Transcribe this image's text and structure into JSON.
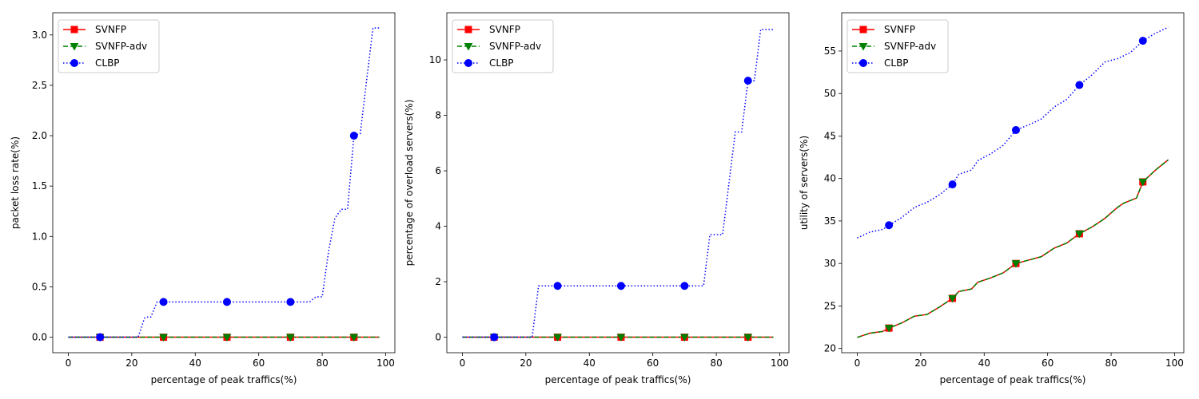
{
  "chart_data": [
    {
      "type": "line",
      "xlabel": "percentage of peak traffics(%)",
      "ylabel": "packet loss rate(%)",
      "xlim": [
        -4.9,
        102.9
      ],
      "ylim": [
        -0.154,
        3.22
      ],
      "xticks": [
        0,
        20,
        40,
        60,
        80,
        100
      ],
      "yticks": [
        0.0,
        0.5,
        1.0,
        1.5,
        2.0,
        2.5,
        3.0
      ],
      "ytick_labels": [
        "0.0",
        "0.5",
        "1.0",
        "1.5",
        "2.0",
        "2.5",
        "3.0"
      ],
      "legend_position": "upper left",
      "series": [
        {
          "name": "SVNFP",
          "color": "#ff0000",
          "dash": "solid",
          "marker": "square",
          "points": [
            [
              0,
              0
            ],
            [
              98,
              0
            ]
          ],
          "markers": [
            [
              10,
              0
            ],
            [
              30,
              0
            ],
            [
              50,
              0
            ],
            [
              70,
              0
            ],
            [
              90,
              0
            ]
          ]
        },
        {
          "name": "SVNFP-adv",
          "color": "#008000",
          "dash": "dashed",
          "marker": "triangle-down",
          "points": [
            [
              0,
              0
            ],
            [
              98,
              0
            ]
          ],
          "markers": [
            [
              10,
              0
            ],
            [
              30,
              0
            ],
            [
              50,
              0
            ],
            [
              70,
              0
            ],
            [
              90,
              0
            ]
          ]
        },
        {
          "name": "CLBP",
          "color": "#0000ff",
          "dash": "dotted",
          "marker": "circle",
          "points": [
            [
              0,
              0
            ],
            [
              22,
              0
            ],
            [
              24,
              0.19
            ],
            [
              25,
              0.2
            ],
            [
              26,
              0.2
            ],
            [
              28,
              0.35
            ],
            [
              76,
              0.35
            ],
            [
              78,
              0.4
            ],
            [
              80,
              0.4
            ],
            [
              82,
              0.85
            ],
            [
              84,
              1.18
            ],
            [
              86,
              1.27
            ],
            [
              88,
              1.27
            ],
            [
              90,
              2.0
            ],
            [
              92,
              2.02
            ],
            [
              94,
              2.55
            ],
            [
              96,
              3.07
            ],
            [
              98,
              3.07
            ]
          ],
          "markers": [
            [
              10,
              0
            ],
            [
              30,
              0.35
            ],
            [
              50,
              0.35
            ],
            [
              70,
              0.35
            ],
            [
              90,
              2.0
            ]
          ]
        }
      ]
    },
    {
      "type": "line",
      "xlabel": "percentage of peak traffics(%)",
      "ylabel": "percentage of overload servers(%)",
      "xlim": [
        -4.9,
        102.9
      ],
      "ylim": [
        -0.56,
        11.7
      ],
      "xticks": [
        0,
        20,
        40,
        60,
        80,
        100
      ],
      "yticks": [
        0,
        2,
        4,
        6,
        8,
        10
      ],
      "ytick_labels": [
        "0",
        "2",
        "4",
        "6",
        "8",
        "10"
      ],
      "legend_position": "upper left",
      "series": [
        {
          "name": "SVNFP",
          "color": "#ff0000",
          "dash": "solid",
          "marker": "square",
          "points": [
            [
              0,
              0
            ],
            [
              98,
              0
            ]
          ],
          "markers": [
            [
              10,
              0
            ],
            [
              30,
              0
            ],
            [
              50,
              0
            ],
            [
              70,
              0
            ],
            [
              90,
              0
            ]
          ]
        },
        {
          "name": "SVNFP-adv",
          "color": "#008000",
          "dash": "dashed",
          "marker": "triangle-down",
          "points": [
            [
              0,
              0
            ],
            [
              98,
              0
            ]
          ],
          "markers": [
            [
              10,
              0
            ],
            [
              30,
              0
            ],
            [
              50,
              0
            ],
            [
              70,
              0
            ],
            [
              90,
              0
            ]
          ]
        },
        {
          "name": "CLBP",
          "color": "#0000ff",
          "dash": "dotted",
          "marker": "circle",
          "points": [
            [
              0,
              0
            ],
            [
              22,
              0
            ],
            [
              24,
              1.85
            ],
            [
              76,
              1.85
            ],
            [
              78,
              3.7
            ],
            [
              82,
              3.7
            ],
            [
              86,
              7.4
            ],
            [
              88,
              7.4
            ],
            [
              90,
              9.25
            ],
            [
              92,
              9.25
            ],
            [
              94,
              11.1
            ],
            [
              98,
              11.1
            ]
          ],
          "markers": [
            [
              10,
              0
            ],
            [
              30,
              1.85
            ],
            [
              50,
              1.85
            ],
            [
              70,
              1.85
            ],
            [
              90,
              9.25
            ]
          ]
        }
      ]
    },
    {
      "type": "line",
      "xlabel": "percentage of peak traffics(%)",
      "ylabel": "utility of servers(%)",
      "xlim": [
        -4.9,
        102.9
      ],
      "ylim": [
        19.5,
        59.5
      ],
      "xticks": [
        0,
        20,
        40,
        60,
        80,
        100
      ],
      "yticks": [
        20,
        25,
        30,
        35,
        40,
        45,
        50,
        55
      ],
      "ytick_labels": [
        "20",
        "25",
        "30",
        "35",
        "40",
        "45",
        "50",
        "55"
      ],
      "legend_position": "upper left",
      "series": [
        {
          "name": "SVNFP",
          "color": "#ff0000",
          "dash": "solid",
          "marker": "square",
          "points": [
            [
              0,
              21.3
            ],
            [
              4,
              21.8
            ],
            [
              8,
              22.0
            ],
            [
              10,
              22.4
            ],
            [
              14,
              23.0
            ],
            [
              18,
              23.8
            ],
            [
              22,
              24.0
            ],
            [
              26,
              24.9
            ],
            [
              30,
              25.9
            ],
            [
              32,
              26.7
            ],
            [
              36,
              27.0
            ],
            [
              38,
              27.8
            ],
            [
              42,
              28.3
            ],
            [
              46,
              28.9
            ],
            [
              50,
              30.0
            ],
            [
              54,
              30.4
            ],
            [
              58,
              30.8
            ],
            [
              62,
              31.8
            ],
            [
              66,
              32.4
            ],
            [
              70,
              33.5
            ],
            [
              74,
              34.3
            ],
            [
              78,
              35.3
            ],
            [
              82,
              36.6
            ],
            [
              84,
              37.1
            ],
            [
              88,
              37.7
            ],
            [
              90,
              39.6
            ],
            [
              94,
              41.0
            ],
            [
              98,
              42.2
            ]
          ],
          "markers": [
            [
              10,
              22.4
            ],
            [
              30,
              25.9
            ],
            [
              50,
              30.0
            ],
            [
              70,
              33.5
            ],
            [
              90,
              39.6
            ]
          ]
        },
        {
          "name": "SVNFP-adv",
          "color": "#008000",
          "dash": "dashed",
          "marker": "triangle-down",
          "points": [
            [
              0,
              21.3
            ],
            [
              4,
              21.8
            ],
            [
              8,
              22.0
            ],
            [
              10,
              22.4
            ],
            [
              14,
              23.0
            ],
            [
              18,
              23.8
            ],
            [
              22,
              24.0
            ],
            [
              26,
              24.9
            ],
            [
              30,
              25.9
            ],
            [
              32,
              26.7
            ],
            [
              36,
              27.0
            ],
            [
              38,
              27.8
            ],
            [
              42,
              28.3
            ],
            [
              46,
              28.9
            ],
            [
              50,
              30.0
            ],
            [
              54,
              30.4
            ],
            [
              58,
              30.8
            ],
            [
              62,
              31.8
            ],
            [
              66,
              32.4
            ],
            [
              70,
              33.5
            ],
            [
              74,
              34.3
            ],
            [
              78,
              35.3
            ],
            [
              82,
              36.6
            ],
            [
              84,
              37.1
            ],
            [
              88,
              37.7
            ],
            [
              90,
              39.6
            ],
            [
              94,
              41.0
            ],
            [
              98,
              42.2
            ]
          ],
          "markers": [
            [
              10,
              22.4
            ],
            [
              30,
              25.9
            ],
            [
              50,
              30.0
            ],
            [
              70,
              33.5
            ],
            [
              90,
              39.6
            ]
          ]
        },
        {
          "name": "CLBP",
          "color": "#0000ff",
          "dash": "dotted",
          "marker": "circle",
          "points": [
            [
              0,
              33.0
            ],
            [
              4,
              33.7
            ],
            [
              8,
              34.0
            ],
            [
              10,
              34.5
            ],
            [
              14,
              35.4
            ],
            [
              18,
              36.6
            ],
            [
              22,
              37.2
            ],
            [
              26,
              38.1
            ],
            [
              30,
              39.3
            ],
            [
              32,
              40.5
            ],
            [
              36,
              41.0
            ],
            [
              38,
              42.1
            ],
            [
              42,
              42.9
            ],
            [
              46,
              43.9
            ],
            [
              50,
              45.7
            ],
            [
              54,
              46.3
            ],
            [
              58,
              47.0
            ],
            [
              62,
              48.4
            ],
            [
              66,
              49.3
            ],
            [
              70,
              51.0
            ],
            [
              74,
              52.2
            ],
            [
              78,
              53.7
            ],
            [
              82,
              54.1
            ],
            [
              86,
              54.8
            ],
            [
              90,
              56.2
            ],
            [
              94,
              57.1
            ],
            [
              98,
              57.8
            ]
          ],
          "markers": [
            [
              10,
              34.5
            ],
            [
              30,
              39.3
            ],
            [
              50,
              45.7
            ],
            [
              70,
              51.0
            ],
            [
              90,
              56.2
            ]
          ]
        }
      ]
    }
  ]
}
